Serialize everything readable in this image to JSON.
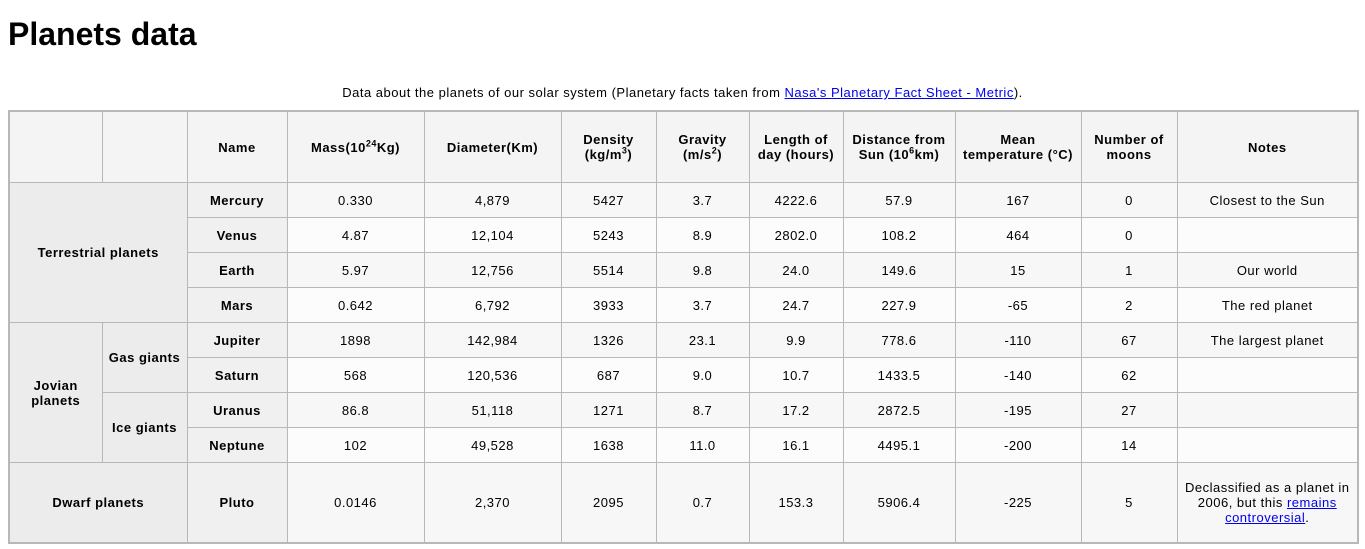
{
  "page": {
    "title": "Planets data"
  },
  "caption": {
    "text_before": "Data about the planets of our solar system (Planetary facts taken from ",
    "link_text": "Nasa's Planetary Fact Sheet - Metric",
    "text_after": ")."
  },
  "headers": {
    "name": "Name",
    "mass": "Mass(10",
    "mass_sup": "24",
    "mass_unit": "Kg)",
    "diameter": "Diameter(Km)",
    "density": "Density (kg/m",
    "density_sup": "3",
    "density_end": ")",
    "gravity": "Gravity (m/s",
    "gravity_sup": "2",
    "gravity_end": ")",
    "day": "Length of day (hours)",
    "distance": "Distance from Sun (10",
    "distance_sup": "6",
    "distance_unit": "km)",
    "temperature": "Mean temperature (°C)",
    "moons": "Number of moons",
    "notes": "Notes"
  },
  "groups": {
    "terrestrial": "Terrestrial planets",
    "jovian": "Jovian planets",
    "gas": "Gas giants",
    "ice": "Ice giants",
    "dwarf": "Dwarf planets"
  },
  "planets": [
    {
      "name": "Mercury",
      "mass": "0.330",
      "diameter": "4,879",
      "density": "5427",
      "gravity": "3.7",
      "day": "4222.6",
      "distance": "57.9",
      "temperature": "167",
      "moons": "0",
      "notes": "Closest to the Sun"
    },
    {
      "name": "Venus",
      "mass": "4.87",
      "diameter": "12,104",
      "density": "5243",
      "gravity": "8.9",
      "day": "2802.0",
      "distance": "108.2",
      "temperature": "464",
      "moons": "0",
      "notes": ""
    },
    {
      "name": "Earth",
      "mass": "5.97",
      "diameter": "12,756",
      "density": "5514",
      "gravity": "9.8",
      "day": "24.0",
      "distance": "149.6",
      "temperature": "15",
      "moons": "1",
      "notes": "Our world"
    },
    {
      "name": "Mars",
      "mass": "0.642",
      "diameter": "6,792",
      "density": "3933",
      "gravity": "3.7",
      "day": "24.7",
      "distance": "227.9",
      "temperature": "-65",
      "moons": "2",
      "notes": "The red planet"
    },
    {
      "name": "Jupiter",
      "mass": "1898",
      "diameter": "142,984",
      "density": "1326",
      "gravity": "23.1",
      "day": "9.9",
      "distance": "778.6",
      "temperature": "-110",
      "moons": "67",
      "notes": "The largest planet"
    },
    {
      "name": "Saturn",
      "mass": "568",
      "diameter": "120,536",
      "density": "687",
      "gravity": "9.0",
      "day": "10.7",
      "distance": "1433.5",
      "temperature": "-140",
      "moons": "62",
      "notes": ""
    },
    {
      "name": "Uranus",
      "mass": "86.8",
      "diameter": "51,118",
      "density": "1271",
      "gravity": "8.7",
      "day": "17.2",
      "distance": "2872.5",
      "temperature": "-195",
      "moons": "27",
      "notes": ""
    },
    {
      "name": "Neptune",
      "mass": "102",
      "diameter": "49,528",
      "density": "1638",
      "gravity": "11.0",
      "day": "16.1",
      "distance": "4495.1",
      "temperature": "-200",
      "moons": "14",
      "notes": ""
    },
    {
      "name": "Pluto",
      "mass": "0.0146",
      "diameter": "2,370",
      "density": "2095",
      "gravity": "0.7",
      "day": "153.3",
      "distance": "5906.4",
      "temperature": "-225",
      "moons": "5",
      "notes": ""
    }
  ],
  "pluto_notes": {
    "text_before": "Declassified as a planet in 2006, but this ",
    "link_text": "remains controversial",
    "text_after": "."
  },
  "colors": {
    "link": "#0000ee",
    "border": "#b8b8b8",
    "header_bg": "#f4f4f4",
    "group_bg": "#ececec"
  }
}
